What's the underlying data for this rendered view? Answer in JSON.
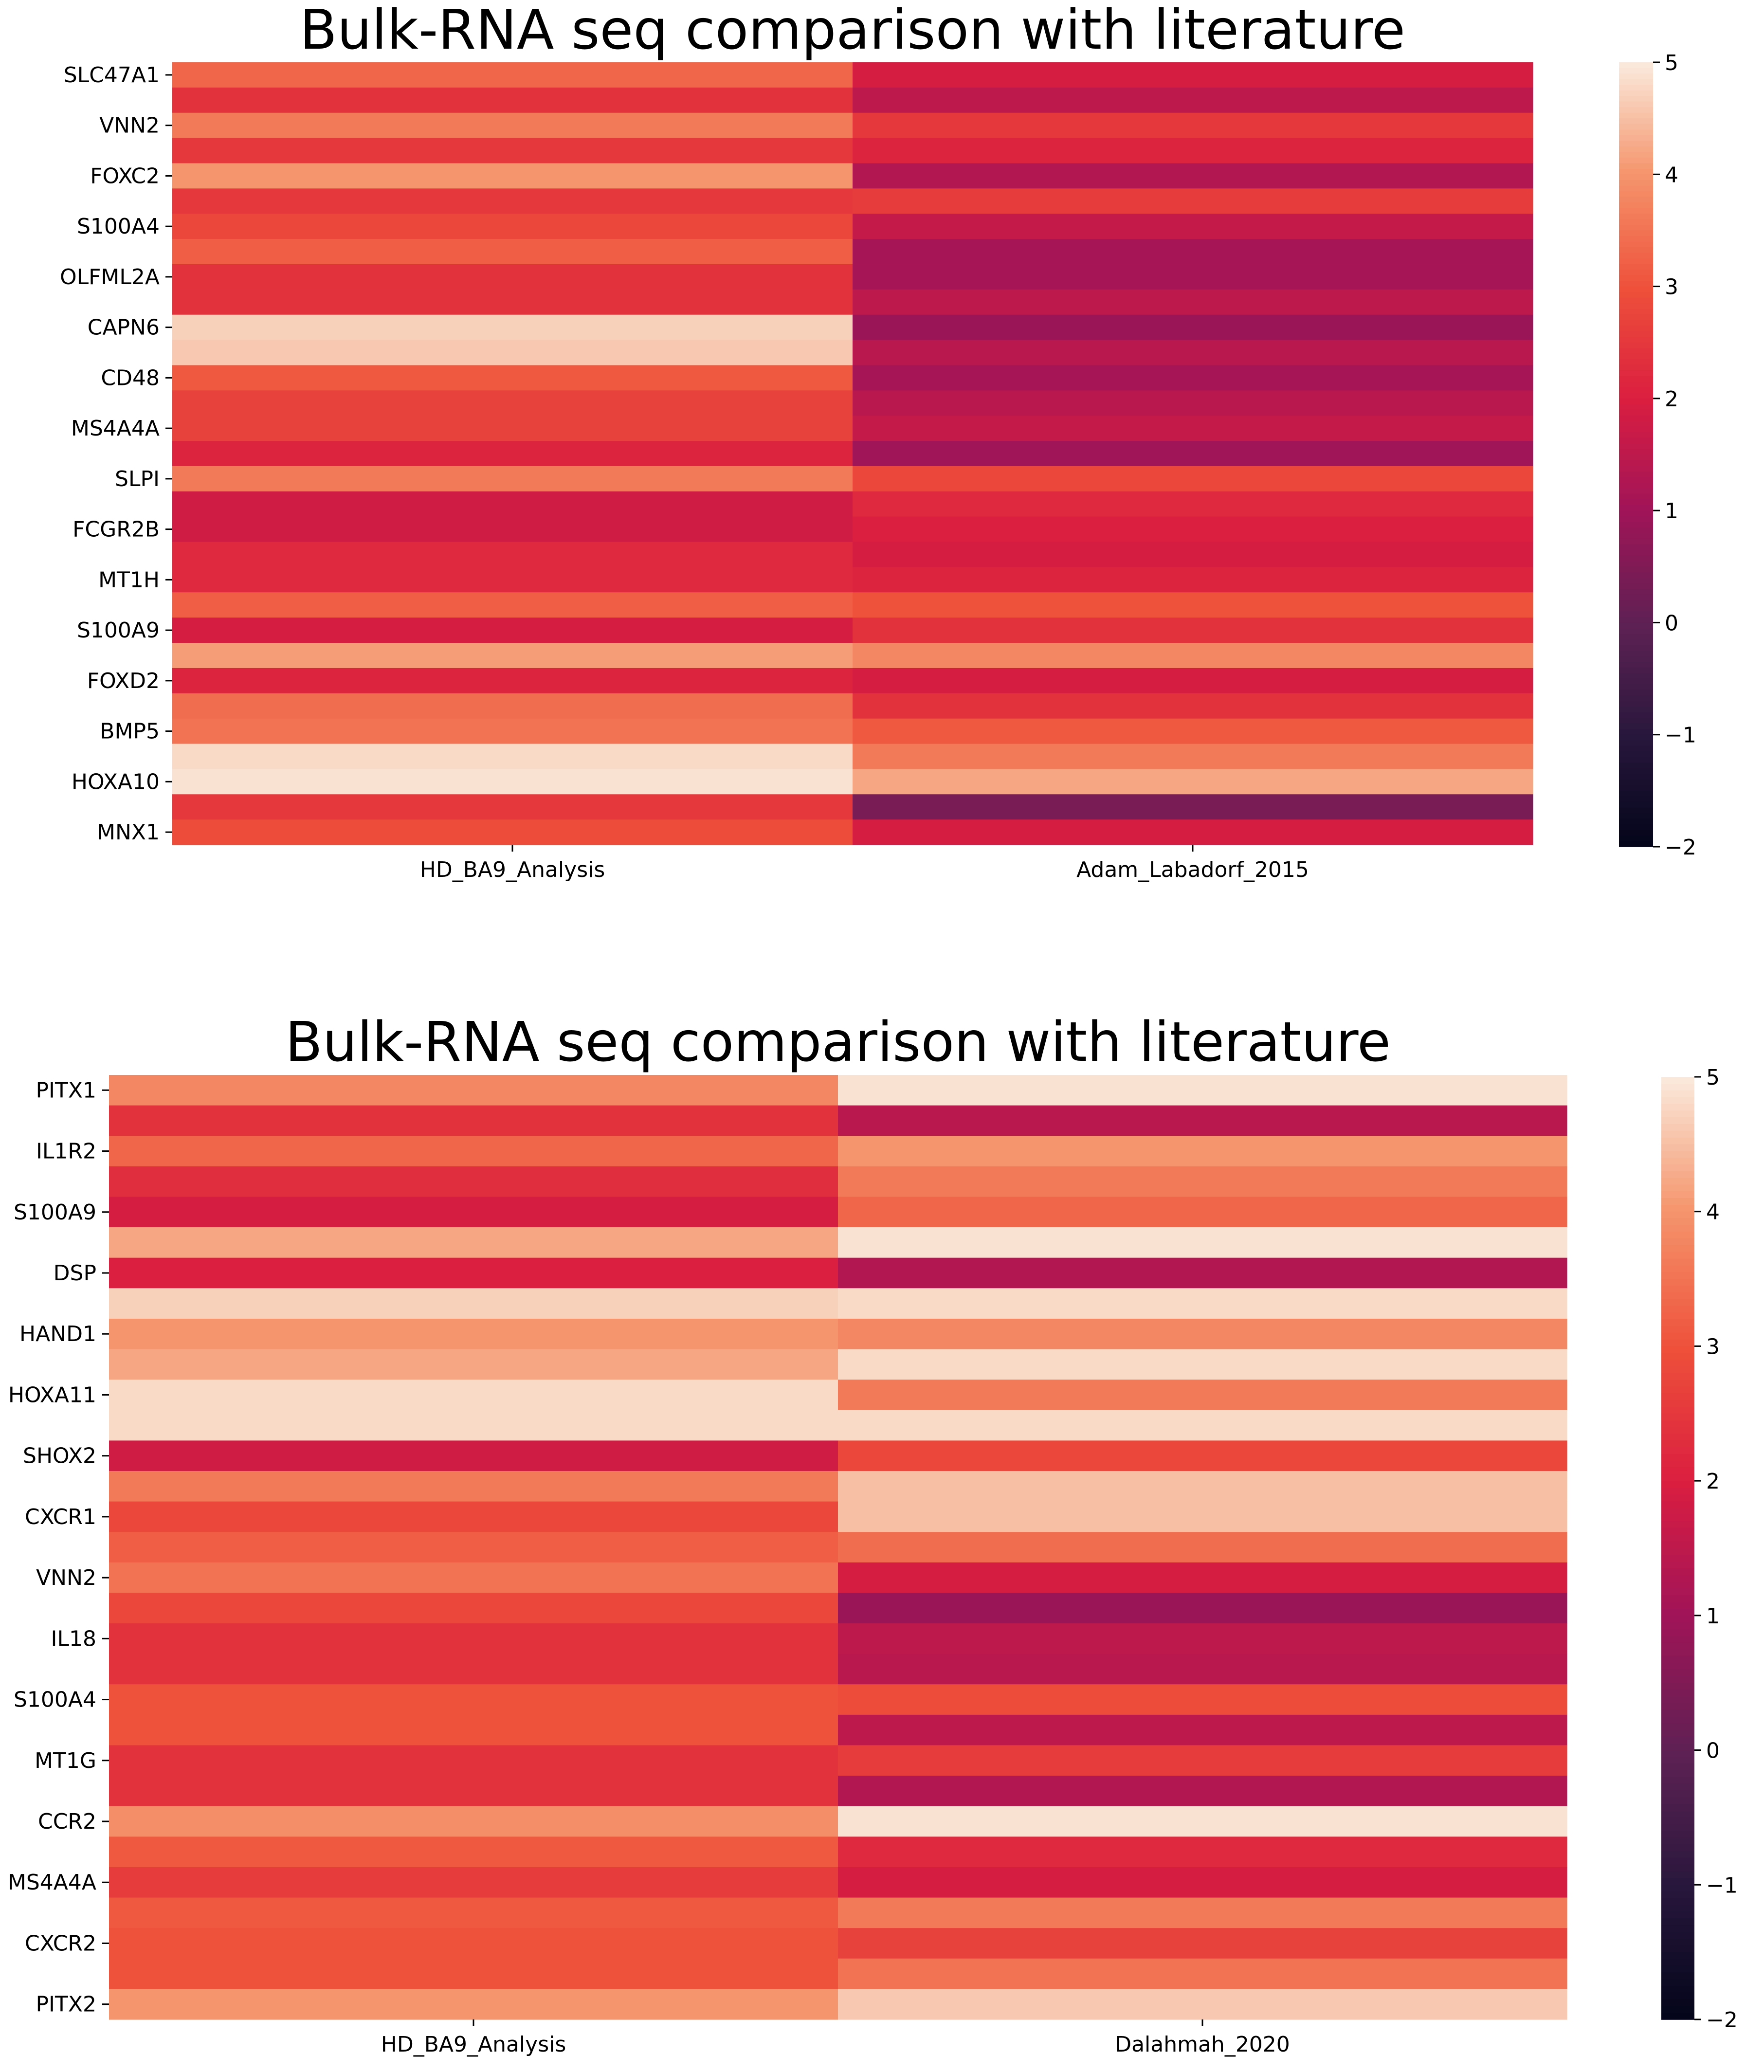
{
  "chart_data": [
    {
      "type": "heatmap",
      "title": "Bulk-RNA seq comparison with literature",
      "columns": [
        "HD_BA9_Analysis",
        "Adam_Labadorf_2015"
      ],
      "y_tick_labels": [
        "SLC47A1",
        "",
        "VNN2",
        "",
        "FOXC2",
        "",
        "S100A4",
        "",
        "OLFML2A",
        "",
        "CAPN6",
        "",
        "CD48",
        "",
        "MS4A4A",
        "",
        "SLPI",
        "",
        "FCGR2B",
        "",
        "MT1H",
        "",
        "S100A9",
        "",
        "FOXD2",
        "",
        "BMP5",
        "",
        "HOXA10",
        "",
        "MNX1"
      ],
      "values": [
        [
          3.3,
          1.9
        ],
        [
          2.4,
          1.5
        ],
        [
          3.6,
          2.5
        ],
        [
          2.5,
          2.1
        ],
        [
          4.0,
          1.3
        ],
        [
          2.5,
          2.6
        ],
        [
          2.8,
          1.6
        ],
        [
          3.2,
          1.1
        ],
        [
          2.4,
          1.1
        ],
        [
          2.4,
          1.5
        ],
        [
          4.7,
          0.9
        ],
        [
          4.6,
          1.4
        ],
        [
          3.1,
          1.1
        ],
        [
          2.7,
          1.4
        ],
        [
          2.7,
          1.6
        ],
        [
          2.1,
          1.0
        ],
        [
          3.6,
          2.8
        ],
        [
          1.8,
          2.2
        ],
        [
          1.8,
          2.0
        ],
        [
          2.2,
          1.9
        ],
        [
          2.2,
          2.1
        ],
        [
          3.2,
          3.0
        ],
        [
          1.9,
          2.4
        ],
        [
          4.1,
          3.8
        ],
        [
          2.1,
          1.9
        ],
        [
          3.4,
          2.4
        ],
        [
          3.5,
          3.1
        ],
        [
          4.8,
          3.6
        ],
        [
          4.9,
          4.2
        ],
        [
          2.5,
          0.4
        ],
        [
          2.9,
          1.9
        ]
      ],
      "colorbar": {
        "min": -2,
        "max": 5,
        "ticks": [
          "5",
          "4",
          "3",
          "2",
          "1",
          "0",
          "−1",
          "−2"
        ]
      }
    },
    {
      "type": "heatmap",
      "title": "Bulk-RNA seq comparison with literature",
      "columns": [
        "HD_BA9_Analysis",
        "Dalahmah_2020"
      ],
      "y_tick_labels": [
        "PITX1",
        "",
        "IL1R2",
        "",
        "S100A9",
        "",
        "DSP",
        "",
        "HAND1",
        "",
        "HOXA11",
        "",
        "SHOX2",
        "",
        "CXCR1",
        "",
        "VNN2",
        "",
        "IL18",
        "",
        "S100A4",
        "",
        "MT1G",
        "",
        "CCR2",
        "",
        "MS4A4A",
        "",
        "CXCR2",
        "",
        "PITX2"
      ],
      "values": [
        [
          3.8,
          4.9
        ],
        [
          2.4,
          1.4
        ],
        [
          3.3,
          4.0
        ],
        [
          2.3,
          3.6
        ],
        [
          1.9,
          3.3
        ],
        [
          4.2,
          4.9
        ],
        [
          2.0,
          1.3
        ],
        [
          4.7,
          4.8
        ],
        [
          4.0,
          3.8
        ],
        [
          4.2,
          4.8
        ],
        [
          4.8,
          3.6
        ],
        [
          4.8,
          4.8
        ],
        [
          1.8,
          2.8
        ],
        [
          3.6,
          4.5
        ],
        [
          2.8,
          4.5
        ],
        [
          3.2,
          3.4
        ],
        [
          3.5,
          1.9
        ],
        [
          2.8,
          0.9
        ],
        [
          2.4,
          1.5
        ],
        [
          2.4,
          1.4
        ],
        [
          3.0,
          2.9
        ],
        [
          3.0,
          1.5
        ],
        [
          2.4,
          2.6
        ],
        [
          2.4,
          1.3
        ],
        [
          3.9,
          4.9
        ],
        [
          3.1,
          2.2
        ],
        [
          2.6,
          1.9
        ],
        [
          3.1,
          3.6
        ],
        [
          3.0,
          2.7
        ],
        [
          3.0,
          3.5
        ],
        [
          4.0,
          4.6
        ]
      ],
      "colorbar": {
        "min": -2,
        "max": 5,
        "ticks": [
          "5",
          "4",
          "3",
          "2",
          "1",
          "0",
          "−1",
          "−2"
        ]
      }
    }
  ]
}
